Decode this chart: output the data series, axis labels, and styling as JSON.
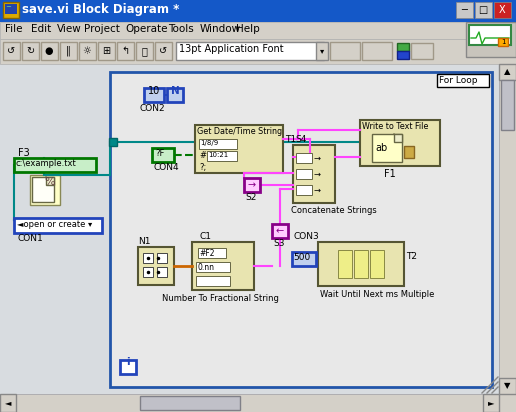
{
  "title_bar_text": "save.vi Block Diagram *",
  "title_bar_color": "#1458c8",
  "menu_bar_color": "#d4d0c8",
  "toolbar_color": "#d4d0c8",
  "canvas_color": "#d8dce0",
  "diagram_color": "#e8e8e8",
  "for_loop_color": "#e8e8e8",
  "for_loop_border": "#2255aa",
  "menu_items": [
    "File",
    "Edit",
    "View",
    "Project",
    "Operate",
    "Tools",
    "Window",
    "Help"
  ],
  "font_dropdown": "13pt Application Font",
  "for_loop_label": "For Loop",
  "get_date_label": "Get Date/Time String",
  "write_file_label": "Write to Text File",
  "concat_label": "Concatenate Strings",
  "num_frac_label": "Number To Fractional String",
  "wait_label": "Wait Until Next ms Multiple",
  "open_create_label": "◄open or create ▾",
  "example_txt": "c:\\example.txt",
  "val_10": "10",
  "val_500": "500",
  "pink": "#ff44ff",
  "teal": "#008888",
  "orange": "#cc6600",
  "green_border": "#007700",
  "blue_border": "#2244bb",
  "block_fill": "#e8e4b0",
  "block_border": "#555533",
  "window_bg": "#d4d0c8"
}
